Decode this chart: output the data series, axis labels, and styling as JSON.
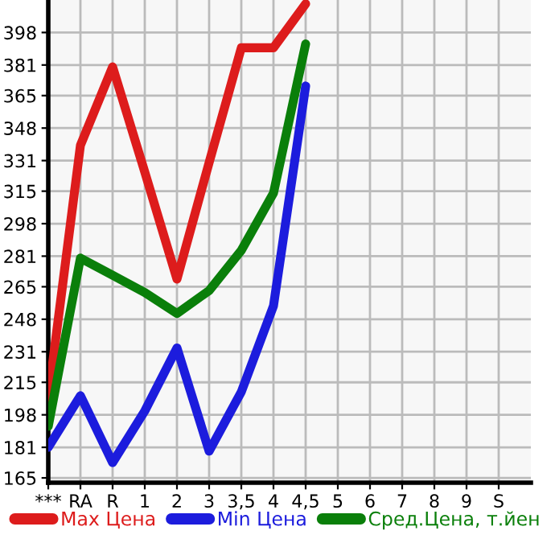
{
  "chart_data": {
    "type": "line",
    "categories": [
      "***",
      "RA",
      "R",
      "1",
      "2",
      "3",
      "3,5",
      "4",
      "4,5",
      "5",
      "6",
      "7",
      "8",
      "9",
      "S"
    ],
    "series": [
      {
        "name": "Max Цена",
        "color": "#dd1c1c",
        "values": [
          207,
          339,
          380,
          325,
          269,
          330,
          390,
          390,
          413,
          null,
          null,
          null,
          null,
          null,
          null
        ]
      },
      {
        "name": "Min Цена",
        "color": "#1c1cdd",
        "values": [
          181,
          208,
          173,
          200,
          233,
          179,
          210,
          255,
          370,
          null,
          null,
          null,
          null,
          null,
          null
        ]
      },
      {
        "name": "Сред.Цена, т.йен",
        "color": "#0a7f0a",
        "values": [
          192,
          280,
          271,
          262,
          251,
          263,
          284,
          314,
          392,
          null,
          null,
          null,
          null,
          null,
          null
        ]
      }
    ],
    "ylim": [
      162.5,
      415
    ],
    "yticks": [
      165,
      181,
      198,
      215,
      231,
      248,
      265,
      281,
      298,
      315,
      331,
      348,
      365,
      381,
      398
    ],
    "grid": true,
    "legend": "bottom",
    "marker": "none",
    "line_style": "solid"
  }
}
